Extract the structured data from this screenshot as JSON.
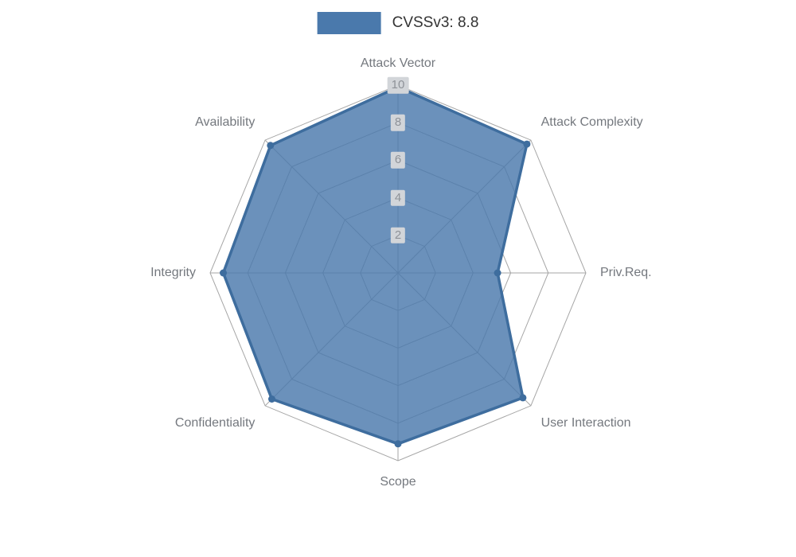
{
  "legend": {
    "label": "CVSSv3: 8.8"
  },
  "chart_data": {
    "type": "radar",
    "axes": [
      "Attack Vector",
      "Attack Complexity",
      "Priv.Req.",
      "User Interaction",
      "Scope",
      "Confidentiality",
      "Integrity",
      "Availability"
    ],
    "series": [
      {
        "name": "CVSSv3: 8.8",
        "values": [
          9.9,
          9.7,
          5.3,
          9.4,
          9.1,
          9.5,
          9.3,
          9.6
        ]
      }
    ],
    "max": 10,
    "ticks": [
      2,
      4,
      6,
      8,
      10
    ],
    "tick_labels": [
      "2",
      "4",
      "6",
      "8",
      "10"
    ],
    "grid": true,
    "legend_position": "top-center",
    "colors": {
      "fill": "#4a79ac",
      "stroke": "#3e6d9e",
      "grid": "#a6a6a6",
      "axis_name": "#74787e",
      "tick_text": "#8e9298",
      "tick_bg": "#d2d5d9"
    }
  }
}
